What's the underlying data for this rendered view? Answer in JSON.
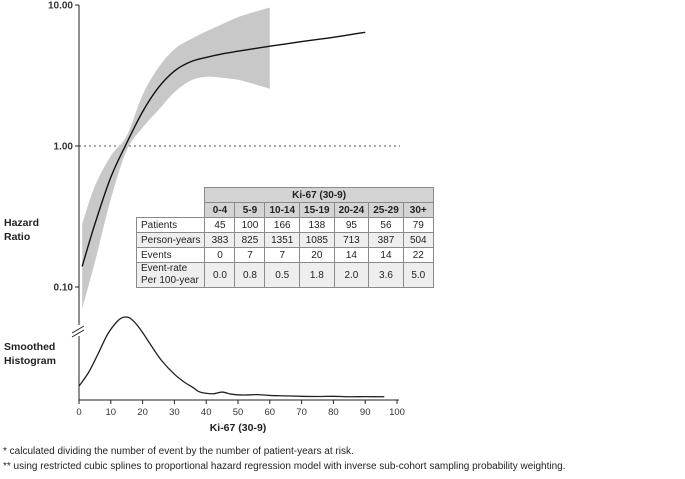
{
  "chart_data": [
    {
      "type": "line",
      "panel": "hazard-ratio",
      "ylabel": "Hazard Ratio",
      "yscale": "log",
      "ylim": [
        0.07,
        10
      ],
      "xlim": [
        0,
        100
      ],
      "yticks": [
        "10.00",
        "1.00",
        "0.10"
      ],
      "reference_line": 1.0,
      "series": [
        {
          "x": [
            1,
            5,
            10,
            15,
            20,
            25,
            30,
            35,
            40,
            45,
            50,
            55,
            60,
            65,
            70,
            75,
            80,
            85,
            90
          ],
          "y": [
            0.14,
            0.28,
            0.6,
            1.05,
            1.75,
            2.6,
            3.4,
            3.95,
            4.25,
            4.5,
            4.7,
            4.9,
            5.1,
            5.3,
            5.5,
            5.7,
            5.9,
            6.15,
            6.4
          ]
        }
      ],
      "ci_band": {
        "x": [
          1,
          5,
          10,
          15,
          20,
          25,
          30,
          35,
          40,
          45,
          50,
          55,
          60
        ],
        "lower": [
          0.07,
          0.15,
          0.42,
          0.93,
          1.35,
          1.8,
          2.4,
          2.9,
          3.1,
          3.05,
          2.95,
          2.75,
          2.55
        ],
        "upper": [
          0.28,
          0.52,
          0.85,
          1.18,
          2.3,
          3.6,
          4.85,
          5.7,
          6.5,
          7.3,
          8.2,
          8.9,
          9.6
        ]
      }
    },
    {
      "type": "area",
      "panel": "smoothed-histogram",
      "ylabel": "Smoothed Histogram",
      "xlabel": "Ki-67 (30-9)",
      "xlim": [
        0,
        100
      ],
      "xticks": [
        0,
        10,
        20,
        30,
        40,
        50,
        60,
        70,
        80,
        90,
        100
      ],
      "series": [
        {
          "x": [
            0,
            3,
            6,
            9,
            12,
            14,
            16,
            18,
            20,
            23,
            26,
            30,
            33,
            36,
            38,
            42,
            45,
            48,
            52,
            56,
            60,
            65,
            70,
            75,
            80,
            85,
            90,
            96
          ],
          "y": [
            0.14,
            0.3,
            0.52,
            0.75,
            0.9,
            0.95,
            0.94,
            0.87,
            0.77,
            0.6,
            0.44,
            0.28,
            0.19,
            0.12,
            0.07,
            0.05,
            0.07,
            0.045,
            0.035,
            0.04,
            0.03,
            0.025,
            0.02,
            0.018,
            0.02,
            0.015,
            0.016,
            0.015
          ]
        }
      ]
    }
  ],
  "ylabels": {
    "hazard": [
      "Hazard",
      "Ratio"
    ],
    "histogram": [
      "Smoothed",
      "Histogram"
    ]
  },
  "table": {
    "title": "Ki-67 (30-9)",
    "columns": [
      "0-4",
      "5-9",
      "10-14",
      "15-19",
      "20-24",
      "25-29",
      "30+"
    ],
    "rows": [
      {
        "label": "Patients",
        "values": [
          "45",
          "100",
          "166",
          "138",
          "95",
          "56",
          "79"
        ]
      },
      {
        "label": "Person-years",
        "values": [
          "383",
          "825",
          "1351",
          "1085",
          "713",
          "387",
          "504"
        ]
      },
      {
        "label": "Events",
        "values": [
          "0",
          "7",
          "7",
          "20",
          "14",
          "14",
          "22"
        ]
      },
      {
        "label": [
          "Event-rate",
          "Per 100-year"
        ],
        "values": [
          "0.0",
          "0.8",
          "0.5",
          "1.8",
          "2.0",
          "3.6",
          "5.0"
        ]
      }
    ]
  },
  "footnotes": [
    "* calculated dividing the number of event by the number of patient-years at risk.",
    "** using restricted cubic splines to proportional hazard regression model with inverse sub-cohort sampling probability weighting."
  ]
}
